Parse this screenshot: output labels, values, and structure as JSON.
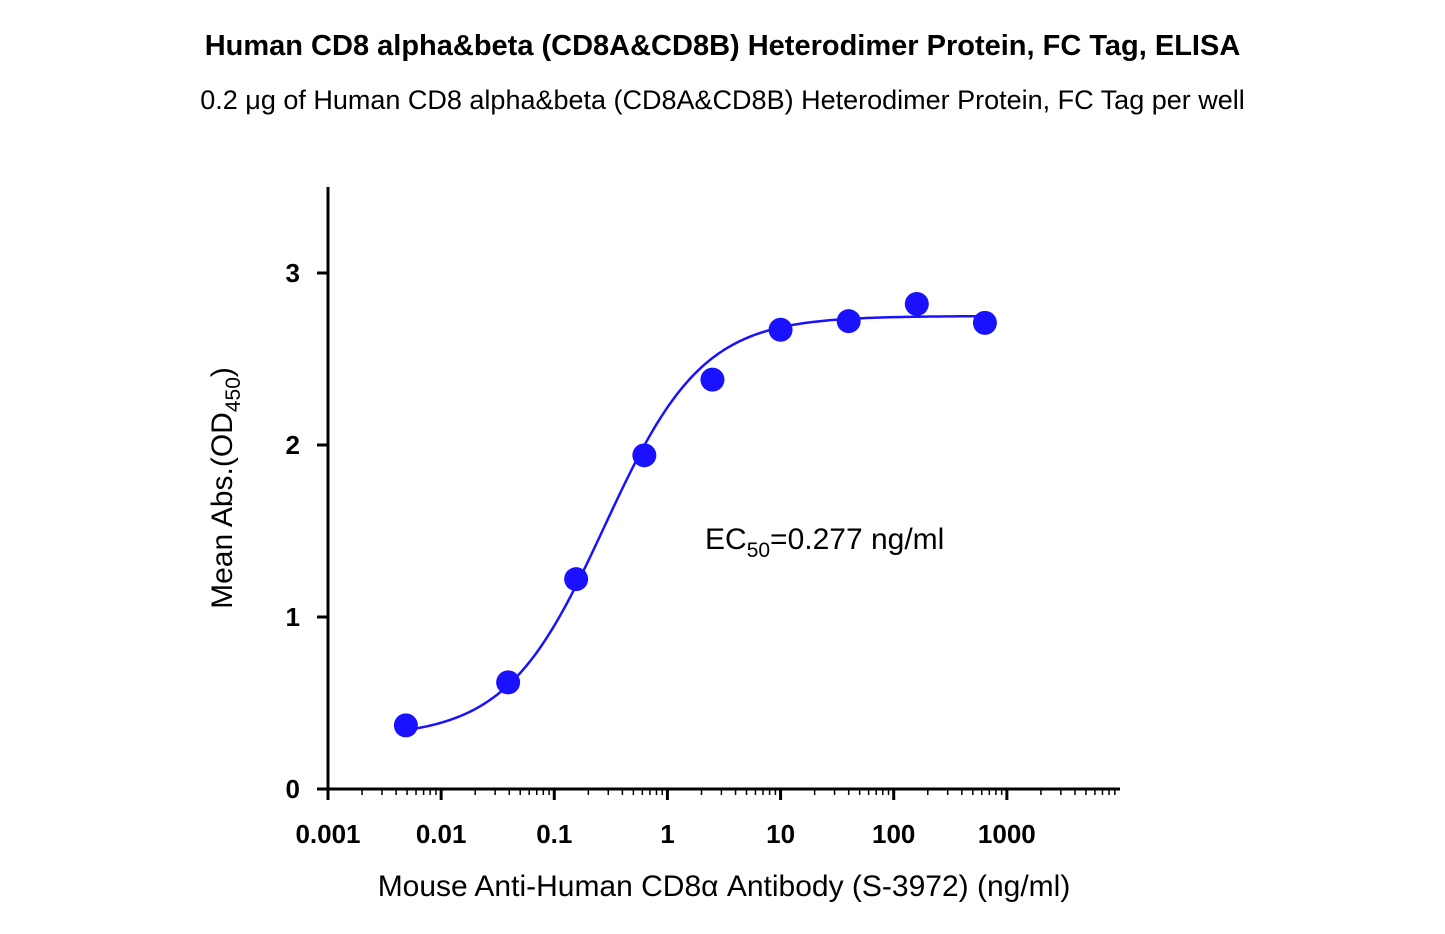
{
  "chart_data": {
    "type": "scatter",
    "title": "Human CD8 alpha&beta (CD8A&CD8B) Heterodimer Protein, FC Tag, ELISA",
    "subtitle": "0.2 μg of Human CD8 alpha&beta (CD8A&CD8B) Heterodimer Protein, FC Tag per well",
    "xlabel": "Mouse Anti-Human CD8α Antibody (S-3972) (ng/ml)",
    "ylabel_main": "Mean Abs.(OD",
    "ylabel_sub": "450",
    "ylabel_close": ")",
    "x_scale": "log",
    "xlim": [
      0.001,
      10000
    ],
    "ylim": [
      0,
      3.5
    ],
    "x_ticks": [
      0.001,
      0.01,
      0.1,
      1,
      10,
      100,
      1000
    ],
    "x_tick_labels": [
      "0.001",
      "0.01",
      "0.1",
      "1",
      "10",
      "100",
      "1000"
    ],
    "y_ticks": [
      0,
      1,
      2,
      3
    ],
    "y_tick_labels": [
      "0",
      "1",
      "2",
      "3"
    ],
    "grid": false,
    "marker_color": "#1a12ff",
    "curve_color": "#1a12ff",
    "series": [
      {
        "x": [
          0.00488,
          0.0391,
          0.156,
          0.625,
          2.5,
          10,
          40,
          160,
          640
        ],
        "y": [
          0.37,
          0.62,
          1.22,
          1.94,
          2.38,
          2.67,
          2.72,
          2.82,
          2.71
        ]
      }
    ],
    "fit": {
      "bottom": 0.3,
      "top": 2.75,
      "ec50": 0.277,
      "hill": 1.0
    },
    "annotation": {
      "prefix": "EC",
      "sub": "50",
      "value": "=0.277 ng/ml"
    }
  }
}
